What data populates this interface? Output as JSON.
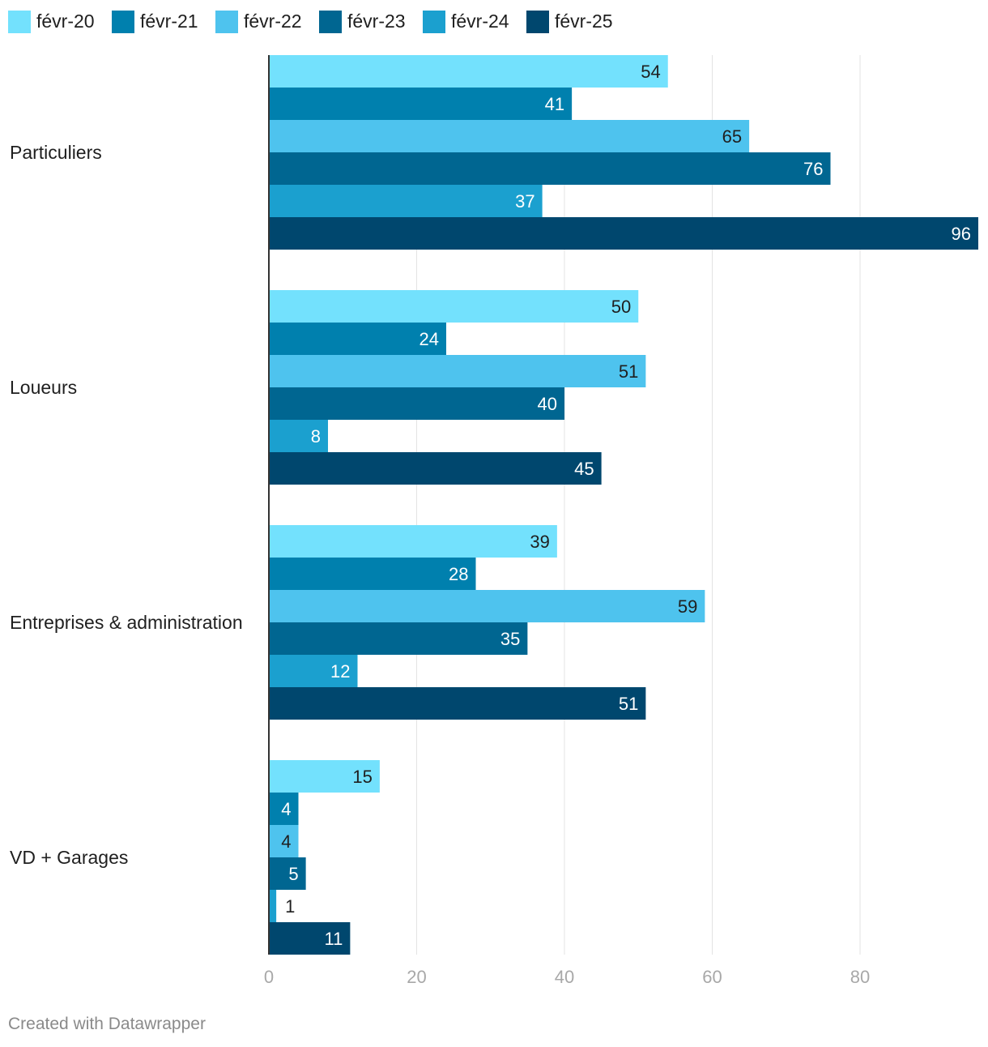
{
  "chart_data": {
    "type": "bar",
    "orientation": "horizontal",
    "categories": [
      "Particuliers",
      "Loueurs",
      "Entreprises & administration",
      "VD + Garages"
    ],
    "series": [
      {
        "name": "févr-20",
        "color": "#73e1fd",
        "values": [
          54,
          50,
          39,
          15
        ]
      },
      {
        "name": "févr-21",
        "color": "#0080ae",
        "values": [
          41,
          24,
          28,
          4
        ]
      },
      {
        "name": "févr-22",
        "color": "#4ec3ee",
        "values": [
          65,
          51,
          59,
          4
        ]
      },
      {
        "name": "févr-23",
        "color": "#006691",
        "values": [
          76,
          40,
          35,
          5
        ]
      },
      {
        "name": "févr-24",
        "color": "#1ba0cf",
        "values": [
          37,
          8,
          12,
          1
        ]
      },
      {
        "name": "févr-25",
        "color": "#00476e",
        "values": [
          96,
          45,
          51,
          11
        ]
      }
    ],
    "xlim": [
      0,
      96
    ],
    "xticks": [
      0,
      20,
      40,
      60,
      80
    ],
    "grid": true,
    "legend": "top-left"
  },
  "footer": "Created with Datawrapper"
}
